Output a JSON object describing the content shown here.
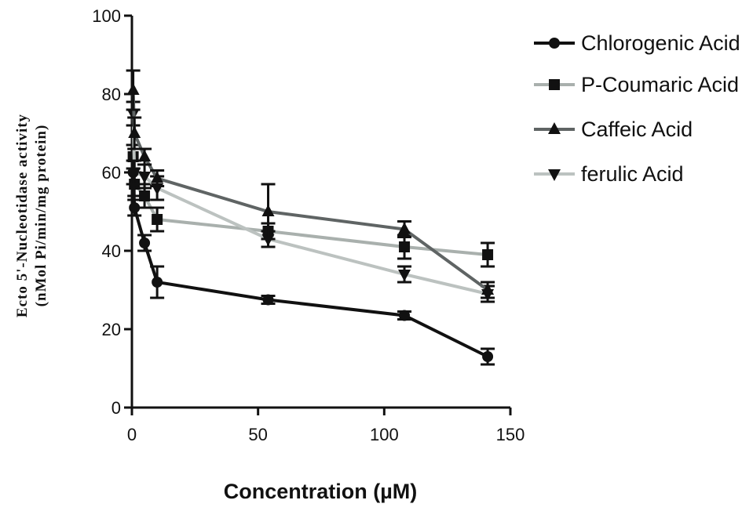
{
  "chart_data": {
    "type": "line",
    "title": "",
    "xlabel": "Concentration (µM)",
    "ylabel": [
      "Ecto 5'-Nucleotidase activity",
      "(nMol Pi/min/mg protein)"
    ],
    "xlim": [
      0,
      150
    ],
    "ylim": [
      0,
      100
    ],
    "xticks": [
      0,
      50,
      100,
      150
    ],
    "yticks": [
      0,
      20,
      40,
      60,
      80,
      100
    ],
    "grid": false,
    "legend_position": "top-right",
    "x": [
      0.5,
      1,
      5,
      10,
      54,
      108,
      141
    ],
    "series": [
      {
        "name": "Chlorogenic Acid",
        "color": "#111111",
        "marker": "circle",
        "values": [
          60,
          51,
          42,
          32,
          27.5,
          23.5,
          13
        ],
        "errors": [
          3,
          2,
          2,
          4,
          1,
          1,
          2
        ]
      },
      {
        "name": "P-Coumaric Acid",
        "color": "#a9b0ad",
        "marker": "square",
        "values": [
          64,
          57,
          54,
          48,
          45,
          41,
          39
        ],
        "errors": [
          3,
          3,
          3,
          3,
          2,
          3,
          3
        ]
      },
      {
        "name": "Caffeic Acid",
        "color": "#5f6464",
        "marker": "triangle-up",
        "values": [
          81,
          70,
          64,
          58.5,
          50,
          45.5,
          30
        ],
        "errors": [
          5,
          4,
          2,
          2,
          7,
          2,
          2
        ]
      },
      {
        "name": "ferulic Acid",
        "color": "#bcc2c0",
        "marker": "triangle-down",
        "values": [
          75,
          60,
          59,
          56,
          43,
          34,
          29
        ],
        "errors": [
          3,
          3,
          3,
          3,
          2,
          2,
          2
        ]
      }
    ]
  }
}
